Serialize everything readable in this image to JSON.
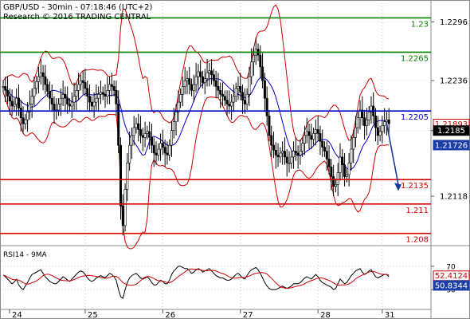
{
  "header": {
    "title": "GBP/USD - 30min - 07:18:46 (UTC+2)",
    "research": "Research © 2016 TRADING CENTRAL"
  },
  "rsi_panel": {
    "label": "RSI14 - 9MA",
    "levels": [
      70,
      30
    ],
    "rsi_value": "52.4124",
    "ma_value": "50.8344"
  },
  "x_ticks": [
    "24",
    "25",
    "26",
    "27",
    "28",
    "31"
  ],
  "colors": {
    "resistance": "#008000",
    "support": "#d00000",
    "pivot": "#0000cc",
    "bollinger": "#cc0000",
    "ma": "#0000cc",
    "candles": "#000000",
    "rsi": "#000000",
    "rsi_ma": "#cc0000",
    "arrow": "#1a3aa0"
  },
  "chart_data": {
    "type": "line",
    "symbol": "GBP/USD",
    "timeframe": "30min",
    "y_price_ticks": [
      1.2296,
      1.2236,
      1.2185,
      1.2118
    ],
    "ylim": [
      1.207,
      1.2315
    ],
    "levels": [
      {
        "label": "1.23",
        "value": 1.23,
        "kind": "resistance"
      },
      {
        "label": "1.2265",
        "value": 1.2265,
        "kind": "resistance"
      },
      {
        "label": "1.2205",
        "value": 1.2205,
        "kind": "pivot"
      },
      {
        "label": "1.2135",
        "value": 1.2135,
        "kind": "support"
      },
      {
        "label": "1.211",
        "value": 1.211,
        "kind": "support"
      },
      {
        "label": "1.208",
        "value": 1.208,
        "kind": "support"
      }
    ],
    "value_tags": [
      {
        "label": "1.21893",
        "value": 1.21893,
        "style": "red-outline"
      },
      {
        "label": "1.2185",
        "value": 1.2185,
        "style": "black"
      },
      {
        "label": "1.21726",
        "value": 1.21726,
        "style": "blue"
      }
    ],
    "price_path": [
      1.223,
      1.2226,
      1.222,
      1.2215,
      1.221,
      1.2212,
      1.2218,
      1.2208,
      1.2198,
      1.2192,
      1.2196,
      1.2204,
      1.2212,
      1.222,
      1.2228,
      1.2235,
      1.224,
      1.2244,
      1.224,
      1.2232,
      1.2225,
      1.2218,
      1.2212,
      1.2206,
      1.2206,
      1.2212,
      1.2218,
      1.2222,
      1.2218,
      1.2212,
      1.221,
      1.2214,
      1.222,
      1.2226,
      1.2232,
      1.2236,
      1.2234,
      1.2228,
      1.222,
      1.2214,
      1.221,
      1.2214,
      1.2218,
      1.2222,
      1.2224,
      1.2222,
      1.222,
      1.2226,
      1.2232,
      1.223,
      1.2226,
      1.2212,
      1.217,
      1.2108,
      1.2088,
      1.2125,
      1.2152,
      1.217,
      1.218,
      1.2188,
      1.2192,
      1.2186,
      1.218,
      1.2178,
      1.2182,
      1.2184,
      1.2178,
      1.217,
      1.2162,
      1.216,
      1.2166,
      1.2172,
      1.2168,
      1.2162,
      1.216,
      1.217,
      1.2185,
      1.2194,
      1.2204,
      1.2214,
      1.2222,
      1.223,
      1.2236,
      1.2238,
      1.2232,
      1.2226,
      1.2232,
      1.224,
      1.2245,
      1.224,
      1.2234,
      1.2238,
      1.2244,
      1.2246,
      1.2242,
      1.2236,
      1.223,
      1.2226,
      1.2222,
      1.222,
      1.2216,
      1.2212,
      1.221,
      1.2214,
      1.222,
      1.2228,
      1.223,
      1.2224,
      1.2216,
      1.2212,
      1.2222,
      1.224,
      1.2255,
      1.2262,
      1.2268,
      1.2262,
      1.225,
      1.2236,
      1.2218,
      1.22,
      1.218,
      1.217,
      1.2165,
      1.216,
      1.2158,
      1.2162,
      1.2164,
      1.2158,
      1.2152,
      1.2152,
      1.2158,
      1.2164,
      1.2162,
      1.216,
      1.2164,
      1.2172,
      1.218,
      1.2184,
      1.218,
      1.2176,
      1.2182,
      1.2186,
      1.2182,
      1.2174,
      1.2168,
      1.2164,
      1.2156,
      1.2148,
      1.2138,
      1.2128,
      1.213,
      1.2142,
      1.2158,
      1.215,
      1.2138,
      1.214,
      1.2152,
      1.2166,
      1.2178,
      1.2188,
      1.2198,
      1.2206,
      1.2198,
      1.219,
      1.2196,
      1.2204,
      1.221,
      1.22,
      1.2188,
      1.218,
      1.2184,
      1.219,
      1.2194,
      1.2196,
      1.2192
    ],
    "rsi": [
      55,
      52,
      48,
      44,
      40,
      43,
      48,
      38,
      33,
      30,
      36,
      42,
      50,
      56,
      58,
      60,
      62,
      64,
      58,
      52,
      48,
      44,
      42,
      40,
      40,
      44,
      48,
      52,
      50,
      46,
      44,
      48,
      52,
      56,
      60,
      62,
      60,
      56,
      50,
      46,
      44,
      46,
      50,
      52,
      54,
      52,
      50,
      54,
      58,
      56,
      52,
      46,
      30,
      18,
      15,
      30,
      42,
      50,
      54,
      56,
      58,
      54,
      50,
      48,
      50,
      52,
      48,
      42,
      38,
      38,
      42,
      46,
      44,
      40,
      40,
      46,
      56,
      62,
      66,
      70,
      70,
      68,
      66,
      66,
      62,
      58,
      60,
      64,
      66,
      64,
      60,
      62,
      64,
      66,
      62,
      58,
      54,
      52,
      50,
      50,
      48,
      46,
      46,
      48,
      52,
      56,
      58,
      54,
      50,
      48,
      54,
      60,
      64,
      66,
      68,
      64,
      58,
      50,
      42,
      36,
      32,
      30,
      30,
      30,
      32,
      34,
      36,
      34,
      32,
      34,
      36,
      40,
      40,
      40,
      42,
      46,
      50,
      52,
      50,
      48,
      52,
      56,
      52,
      46,
      42,
      40,
      38,
      36,
      34,
      30,
      32,
      40,
      48,
      44,
      40,
      42,
      48,
      54,
      58,
      62,
      64,
      66,
      60,
      56,
      58,
      62,
      64,
      58,
      52,
      50,
      52,
      54,
      56,
      56,
      52
    ]
  }
}
